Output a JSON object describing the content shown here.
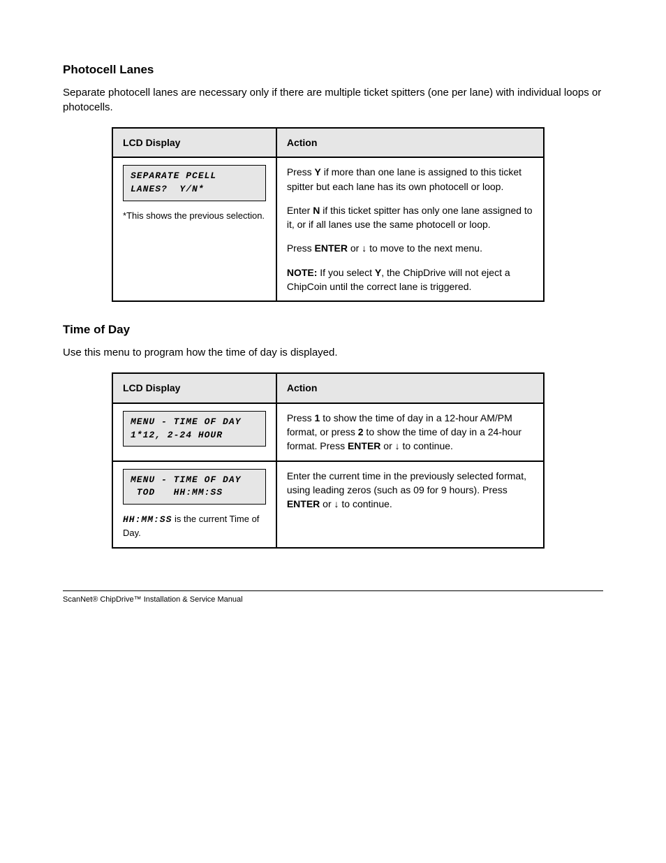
{
  "sections": [
    {
      "heading": "Photocell Lanes",
      "intro": "Separate photocell lanes are necessary only if there are multiple ticket spitters (one per lane) with individual loops or photocells.",
      "table": {
        "headers": [
          "LCD Display",
          "Action"
        ],
        "rows": [
          {
            "lcd": [
              "SEPARATE PCELL",
              "LANES?  Y/N*"
            ],
            "display_note_prefix": "*",
            "display_note": "This shows the previous selection.",
            "actions": [
              {
                "para": [
                  "Press ",
                  {
                    "bold": true,
                    "text": "Y"
                  },
                  " if more than one lane is assigned to this ticket spitter but each lane has its own photocell or loop."
                ]
              },
              {
                "para": [
                  "Enter ",
                  {
                    "bold": true,
                    "text": "N"
                  },
                  " if this ticket spitter has only one lane assigned to it, or if all lanes use the same photocell or loop."
                ]
              },
              {
                "para": [
                  "Press ",
                  {
                    "bold": true,
                    "text": "ENTER"
                  },
                  " or ",
                  {
                    "bold": true,
                    "arrow": true,
                    "text": "↓"
                  },
                  " to move to the next menu."
                ]
              },
              {
                "para": [
                  {
                    "bold": true,
                    "text": "NOTE:"
                  },
                  " If you select ",
                  {
                    "bold": true,
                    "text": "Y"
                  },
                  ", the ChipDrive will not eject a ChipCoin until the correct lane is triggered."
                ]
              }
            ]
          }
        ]
      }
    },
    {
      "heading": "Time of Day",
      "intro": "Use this menu to program how the time of day is displayed.",
      "table": {
        "headers": [
          "LCD Display",
          "Action"
        ],
        "rows": [
          {
            "lcd": [
              "MENU - TIME OF DAY",
              "1*12, 2-24 HOUR"
            ],
            "actions": [
              {
                "para": [
                  "Press ",
                  {
                    "bold": true,
                    "text": "1"
                  },
                  " to show the time of day in a 12-hour AM/PM format, or press ",
                  {
                    "bold": true,
                    "text": "2"
                  },
                  " to show the time of day in a 24-hour format. Press ",
                  {
                    "bold": true,
                    "text": "ENTER"
                  },
                  " or ",
                  {
                    "bold": true,
                    "arrow": true,
                    "text": "↓"
                  },
                  " to continue."
                ]
              }
            ]
          },
          {
            "lcd": [
              "MENU - TIME OF DAY",
              " TOD   HH:MM:SS"
            ],
            "display_note_lcd": "HH:MM:SS",
            "display_note": " is the current Time of Day.",
            "actions": [
              {
                "para": [
                  "Enter the current time in the previously selected format, using leading zeros (such as 09 for 9 hours). Press ",
                  {
                    "bold": true,
                    "text": "ENTER"
                  },
                  " or ",
                  {
                    "bold": true,
                    "arrow": true,
                    "text": "↓"
                  },
                  " to continue."
                ]
              }
            ]
          }
        ]
      }
    }
  ],
  "footer": "ScanNet® ChipDrive™ Installation & Service Manual"
}
